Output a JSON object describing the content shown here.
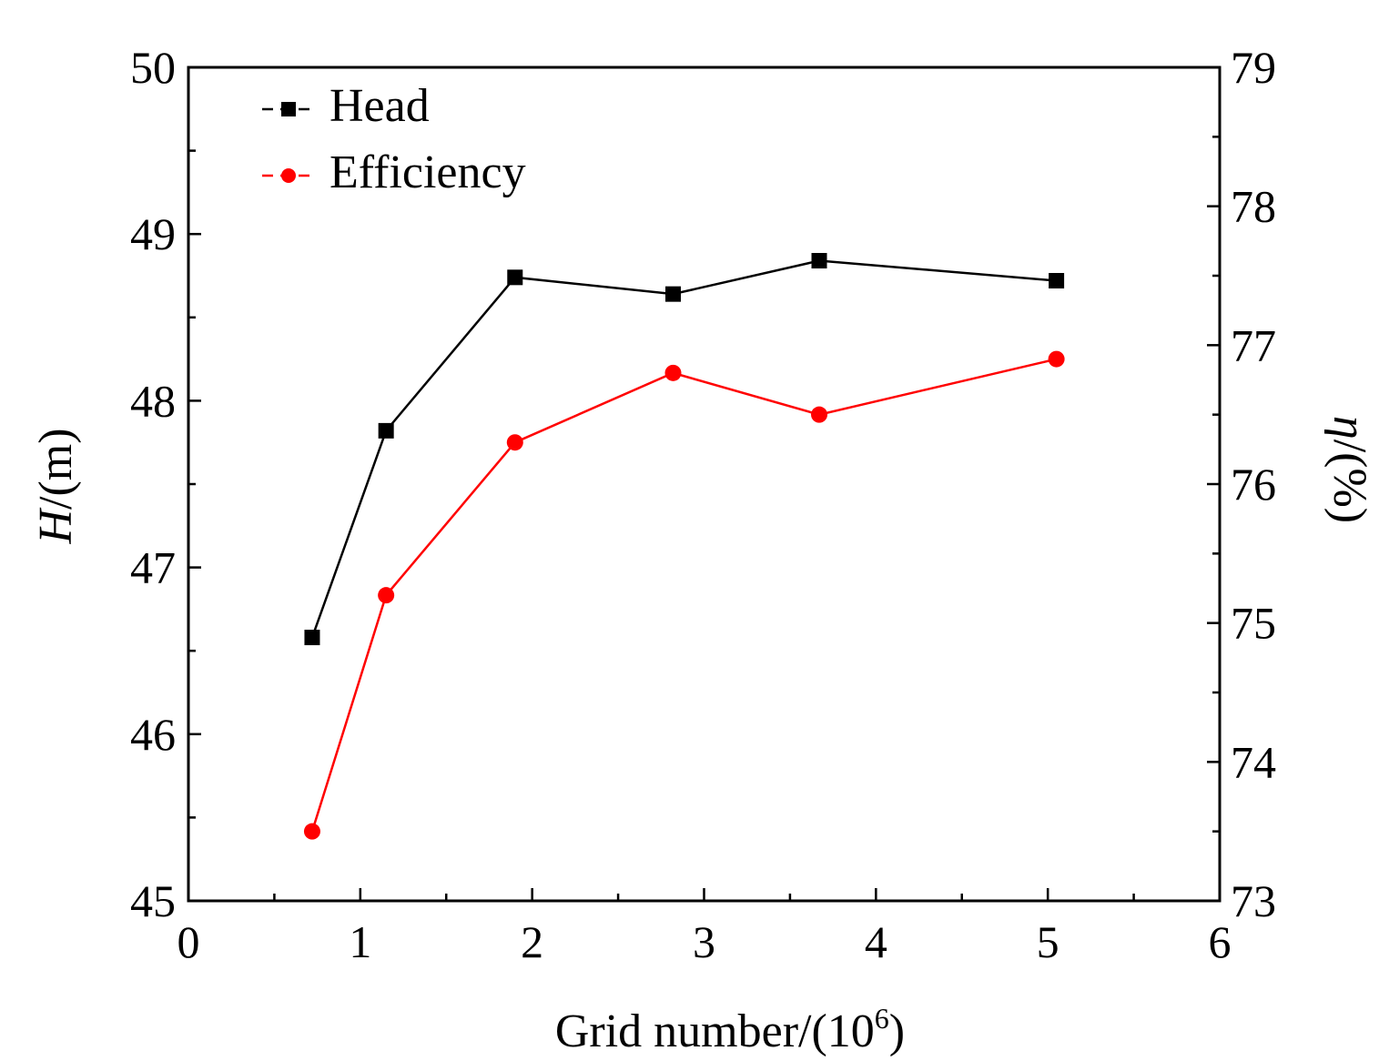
{
  "chart_data": {
    "type": "line",
    "x": [
      0.72,
      1.15,
      1.9,
      2.82,
      3.67,
      5.05
    ],
    "series": [
      {
        "name": "Head",
        "axis": "left",
        "color": "#000000",
        "marker": "square",
        "values": [
          46.58,
          47.82,
          48.74,
          48.64,
          48.84,
          48.72
        ]
      },
      {
        "name": "Efficiency",
        "axis": "right",
        "color": "#ff0000",
        "marker": "circle",
        "values": [
          73.5,
          75.2,
          76.3,
          76.8,
          76.5,
          76.9
        ]
      }
    ],
    "xlim": [
      0,
      6
    ],
    "ylim_left": [
      45,
      50
    ],
    "ylim_right": [
      73,
      79
    ],
    "x_ticks": [
      "0",
      "1",
      "2",
      "3",
      "4",
      "5",
      "6"
    ],
    "y_left_ticks": [
      "45",
      "46",
      "47",
      "48",
      "49",
      "50"
    ],
    "y_right_ticks": [
      "73",
      "74",
      "75",
      "76",
      "77",
      "78",
      "79"
    ],
    "xlabel": {
      "main": "Grid number/(10",
      "sup": "6",
      "tail": ")"
    },
    "ylabel_left": {
      "symbol": "H",
      "unit": "/(m)"
    },
    "ylabel_right": {
      "symbol": "η",
      "unit": "/(%)"
    },
    "legend": {
      "position": "top-left",
      "entries": [
        "Head",
        "Efficiency"
      ]
    }
  }
}
